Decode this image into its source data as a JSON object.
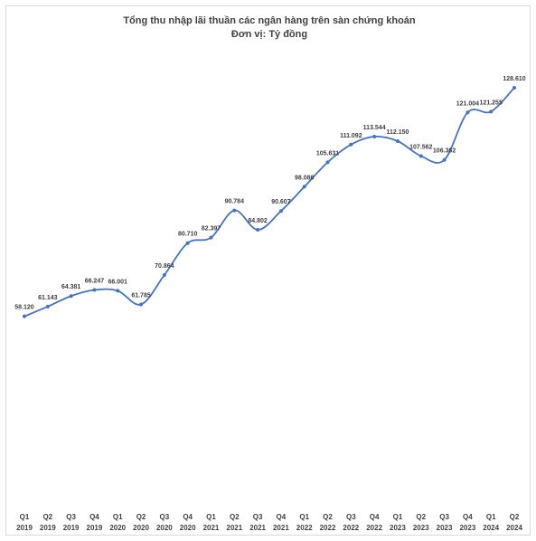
{
  "chart_data": {
    "type": "line",
    "title": "Tổng thu nhập lãi thuần các ngân hàng trên sàn chứng khoán",
    "subtitle": "Đơn vị: Tỷ đồng",
    "categories": [
      "Q1 2019",
      "Q2 2019",
      "Q3 2019",
      "Q4 2019",
      "Q1 2020",
      "Q2 2020",
      "Q3 2020",
      "Q4 2020",
      "Q1 2021",
      "Q2 2021",
      "Q3 2021",
      "Q4 2021",
      "Q1 2022",
      "Q2 2022",
      "Q3 2022",
      "Q4 2022",
      "Q1 2023",
      "Q2 2023",
      "Q3 2023",
      "Q4 2023",
      "Q1 2024",
      "Q2 2024"
    ],
    "values": [
      58120,
      61143,
      64381,
      66247,
      66001,
      61785,
      70864,
      80710,
      82397,
      90784,
      84802,
      90607,
      98086,
      105631,
      111092,
      113544,
      112150,
      107562,
      106362,
      121004,
      121255,
      128610
    ],
    "value_labels": [
      "58.120",
      "61.143",
      "64.381",
      "66.247",
      "66.001",
      "61.785",
      "70.864",
      "80.710",
      "82.397",
      "90.784",
      "84.802",
      "90.607",
      "98.086",
      "105.631",
      "111.092",
      "113.544",
      "112.150",
      "107.562",
      "106.362",
      "121.004",
      "121.255",
      "128.610"
    ],
    "color": "#4472c4"
  }
}
